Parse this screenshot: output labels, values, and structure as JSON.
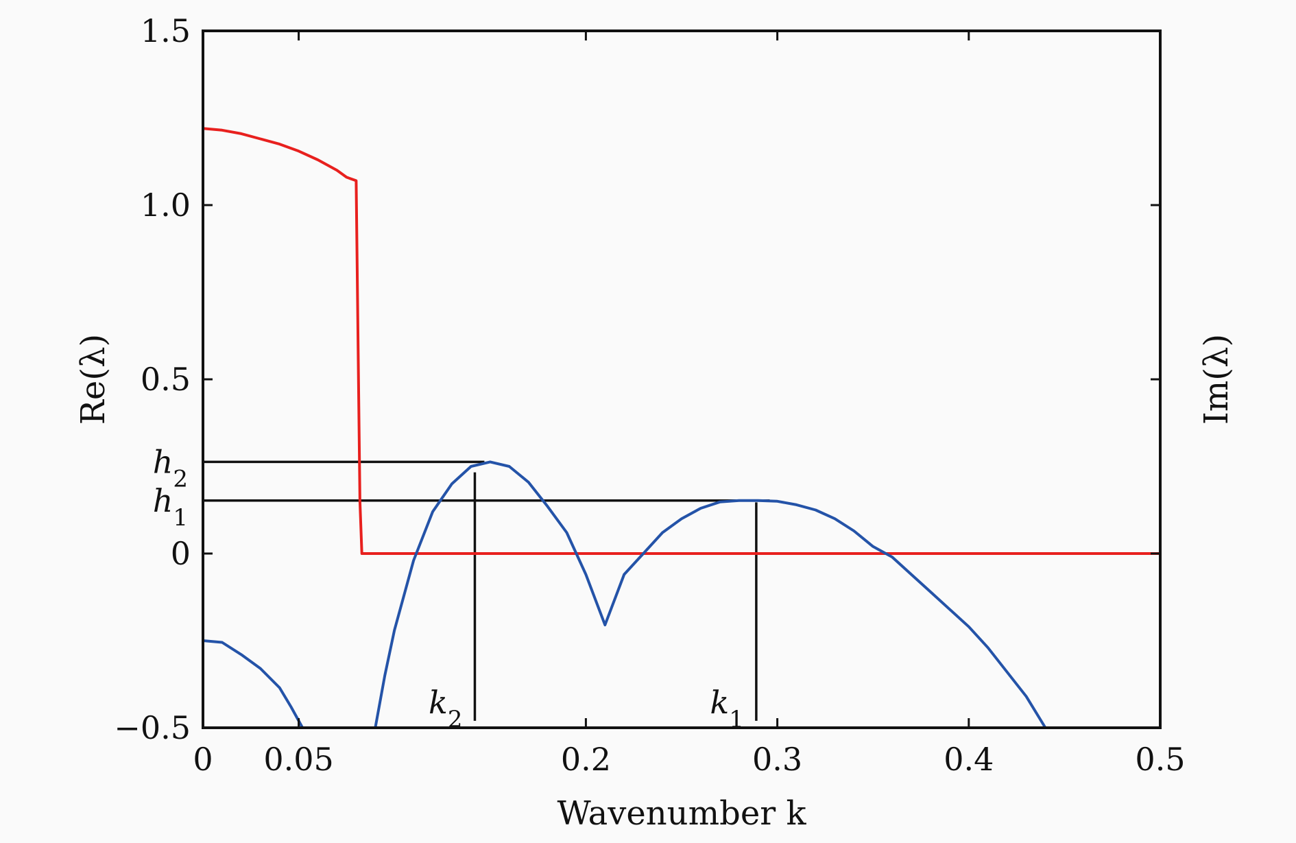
{
  "chart_data": {
    "type": "line",
    "xlabel": "Wavenumber k",
    "ylabel_left": "Re(λ)",
    "ylabel_right": "Im(λ)",
    "xlim": [
      0,
      0.5
    ],
    "ylim": [
      -0.5,
      1.5
    ],
    "grid": false,
    "x_ticks": [
      {
        "value": 0,
        "label": "0"
      },
      {
        "value": 0.05,
        "label": "0.05"
      },
      {
        "value": 0.2,
        "label": "0.2"
      },
      {
        "value": 0.3,
        "label": "0.3"
      },
      {
        "value": 0.4,
        "label": "0.4"
      },
      {
        "value": 0.5,
        "label": "0.5"
      }
    ],
    "y_ticks": [
      {
        "value": 1.5,
        "label": "1.5"
      },
      {
        "value": 1.0,
        "label": "1.0"
      },
      {
        "value": 0.5,
        "label": "0.5"
      },
      {
        "value": 0,
        "label": "0"
      },
      {
        "value": -0.5,
        "label": "−0.5"
      }
    ],
    "series": [
      {
        "color": "#e8201e",
        "x": [
          0,
          0.01,
          0.02,
          0.03,
          0.04,
          0.05,
          0.06,
          0.07,
          0.075,
          0.08,
          0.081,
          0.082,
          0.083,
          0.5
        ],
        "y": [
          1.22,
          1.215,
          1.205,
          1.19,
          1.175,
          1.155,
          1.13,
          1.1,
          1.08,
          1.07,
          0.6,
          0.15,
          0,
          0
        ]
      },
      {
        "color": "#2453a8",
        "x": [
          0,
          0.01,
          0.02,
          0.03,
          0.04,
          0.046,
          0.052
        ],
        "y": [
          -0.25,
          -0.255,
          -0.29,
          -0.33,
          -0.385,
          -0.44,
          -0.5
        ]
      },
      {
        "color": "#2453a8",
        "x": [
          0.09,
          0.095,
          0.1,
          0.11,
          0.12,
          0.13,
          0.14,
          0.15,
          0.16,
          0.17,
          0.18,
          0.19,
          0.2,
          0.21,
          0.22,
          0.23,
          0.24,
          0.25,
          0.26,
          0.27,
          0.28,
          0.29,
          0.3,
          0.31,
          0.32,
          0.33,
          0.34,
          0.35,
          0.36,
          0.37,
          0.38,
          0.39,
          0.4,
          0.41,
          0.42,
          0.43,
          0.44
        ],
        "y": [
          -0.5,
          -0.35,
          -0.22,
          -0.02,
          0.12,
          0.2,
          0.25,
          0.263,
          0.25,
          0.205,
          0.135,
          0.06,
          -0.06,
          -0.205,
          -0.06,
          0.0,
          0.06,
          0.1,
          0.13,
          0.148,
          0.152,
          0.152,
          0.15,
          0.14,
          0.125,
          0.1,
          0.065,
          0.02,
          -0.01,
          -0.06,
          -0.11,
          -0.16,
          -0.21,
          -0.27,
          -0.34,
          -0.41,
          -0.5
        ]
      }
    ],
    "reference_lines": [
      {
        "type": "hline",
        "y": 0.263,
        "x_from": 0,
        "x_to": 0.147
      },
      {
        "type": "hline",
        "y": 0.152,
        "x_from": 0,
        "x_to": 0.296
      },
      {
        "type": "vline",
        "x": 0.142,
        "y_from": -0.48,
        "y_to": 0.233
      },
      {
        "type": "vline",
        "x": 0.289,
        "y_from": -0.48,
        "y_to": 0.147
      }
    ],
    "annotations": [
      {
        "text": "h",
        "sub": "2",
        "anchor": "y",
        "value": 0.263
      },
      {
        "text": "h",
        "sub": "1",
        "anchor": "y",
        "value": 0.152
      },
      {
        "text": "k",
        "sub": "2",
        "anchor": "x",
        "value": 0.142
      },
      {
        "text": "k",
        "sub": "1",
        "anchor": "x",
        "value": 0.289
      }
    ]
  }
}
